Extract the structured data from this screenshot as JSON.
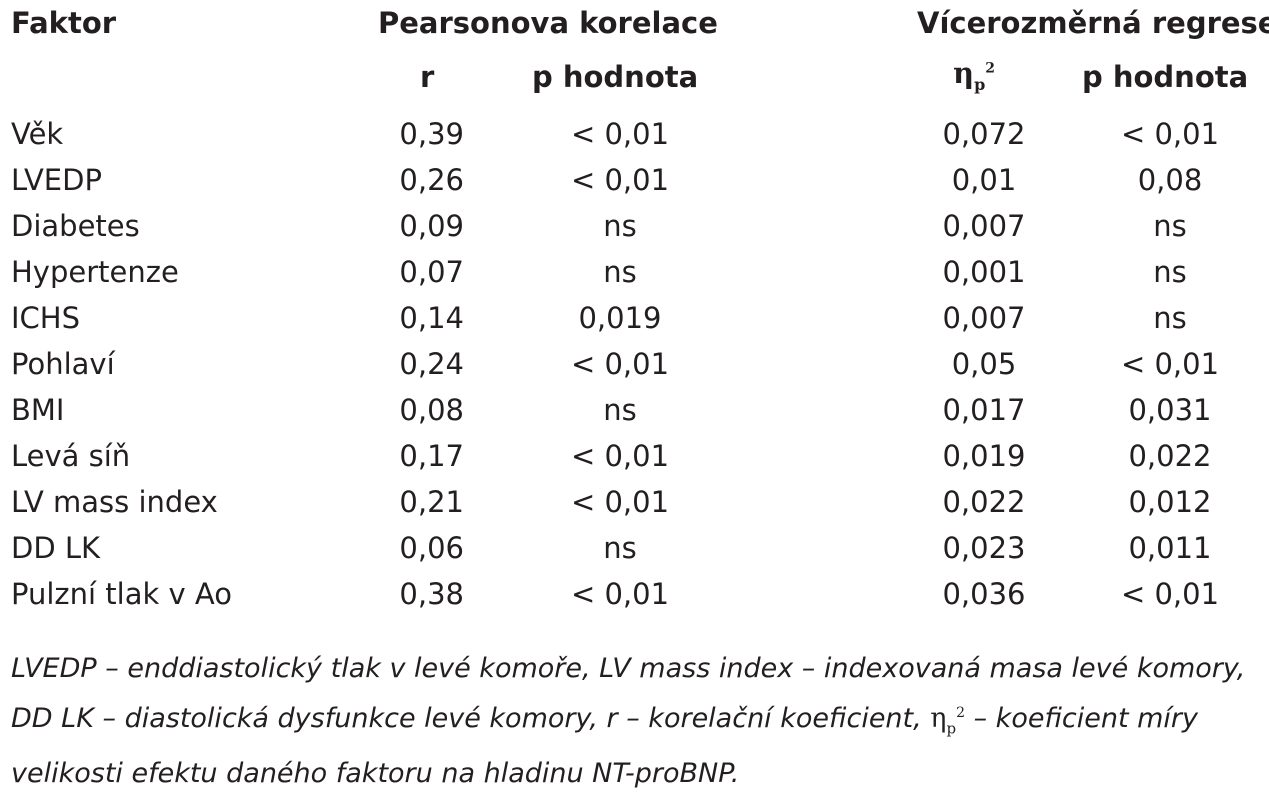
{
  "header": {
    "factor": "Faktor",
    "pearson": "Pearsonova korelace",
    "regression": "Vícerozměrná regrese",
    "r": "r",
    "p_pearson": "p hodnota",
    "eta_symbol": "η",
    "eta_sub": "p",
    "eta_sup": "2",
    "p_regression": "p hodnota"
  },
  "rows": [
    {
      "factor": "Věk",
      "r": "0,39",
      "p": "< 0,01",
      "eta": "0,072",
      "p2": "< 0,01"
    },
    {
      "factor": "LVEDP",
      "r": "0,26",
      "p": "< 0,01",
      "eta": "0,01",
      "p2": "0,08"
    },
    {
      "factor": "Diabetes",
      "r": "0,09",
      "p": "ns",
      "eta": "0,007",
      "p2": "ns"
    },
    {
      "factor": "Hypertenze",
      "r": "0,07",
      "p": "ns",
      "eta": "0,001",
      "p2": "ns"
    },
    {
      "factor": "ICHS",
      "r": "0,14",
      "p": "0,019",
      "eta": "0,007",
      "p2": "ns"
    },
    {
      "factor": "Pohlaví",
      "r": "0,24",
      "p": "< 0,01",
      "eta": "0,05",
      "p2": "< 0,01"
    },
    {
      "factor": "BMI",
      "r": "0,08",
      "p": "ns",
      "eta": "0,017",
      "p2": "0,031"
    },
    {
      "factor": "Levá síň",
      "r": "0,17",
      "p": "< 0,01",
      "eta": "0,019",
      "p2": "0,022"
    },
    {
      "factor": "LV mass index",
      "r": "0,21",
      "p": "< 0,01",
      "eta": "0,022",
      "p2": "0,012"
    },
    {
      "factor": "DD LK",
      "r": "0,06",
      "p": "ns",
      "eta": "0,023",
      "p2": "0,011"
    },
    {
      "factor": "Pulzní tlak v Ao",
      "r": "0,38",
      "p": "< 0,01",
      "eta": "0,036",
      "p2": "< 0,01"
    }
  ],
  "footnote": {
    "part1": "LVEDP – enddiastolický tlak v levé komoře, LV mass index – indexovaná masa levé komory, DD LK – diastolická dysfunkce levé komory, r – korelační koeficient, ",
    "eta_symbol": "η",
    "eta_sub": "p",
    "eta_sup": "2",
    "part2": " – koeficient míry velikosti efektu daného faktoru na hladinu NT-proBNP."
  }
}
